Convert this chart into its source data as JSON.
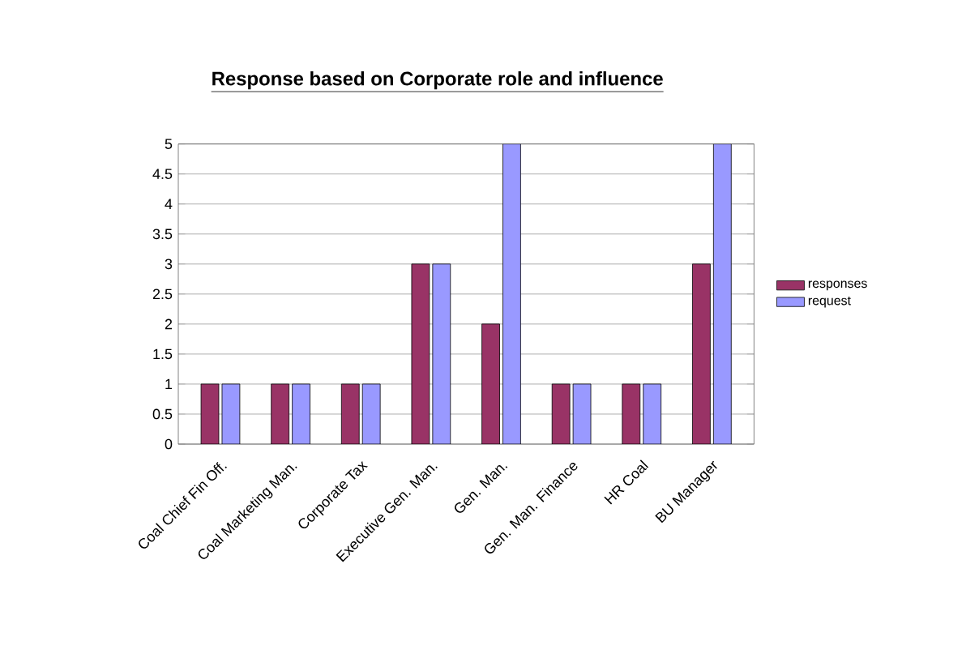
{
  "chart_data": {
    "type": "bar",
    "title": "Response based on Corporate role and influence",
    "categories": [
      "Coal Chief Fin Off.",
      "Coal Marketing Man.",
      "Corporate Tax",
      "Executive Gen. Man.",
      "Gen. Man.",
      "Gen. Man. Finance",
      "HR Coal",
      "BU Manager"
    ],
    "series": [
      {
        "name": "responses",
        "color": "#993366",
        "values": [
          1,
          1,
          1,
          3,
          2,
          1,
          1,
          3
        ]
      },
      {
        "name": "request",
        "color": "#9999ff",
        "values": [
          1,
          1,
          1,
          3,
          5,
          1,
          1,
          5
        ]
      }
    ],
    "ylim": [
      0,
      5
    ],
    "yticks": [
      0,
      0.5,
      1,
      1.5,
      2,
      2.5,
      3,
      3.5,
      4,
      4.5,
      5
    ],
    "grid": "y",
    "legend": "right"
  }
}
